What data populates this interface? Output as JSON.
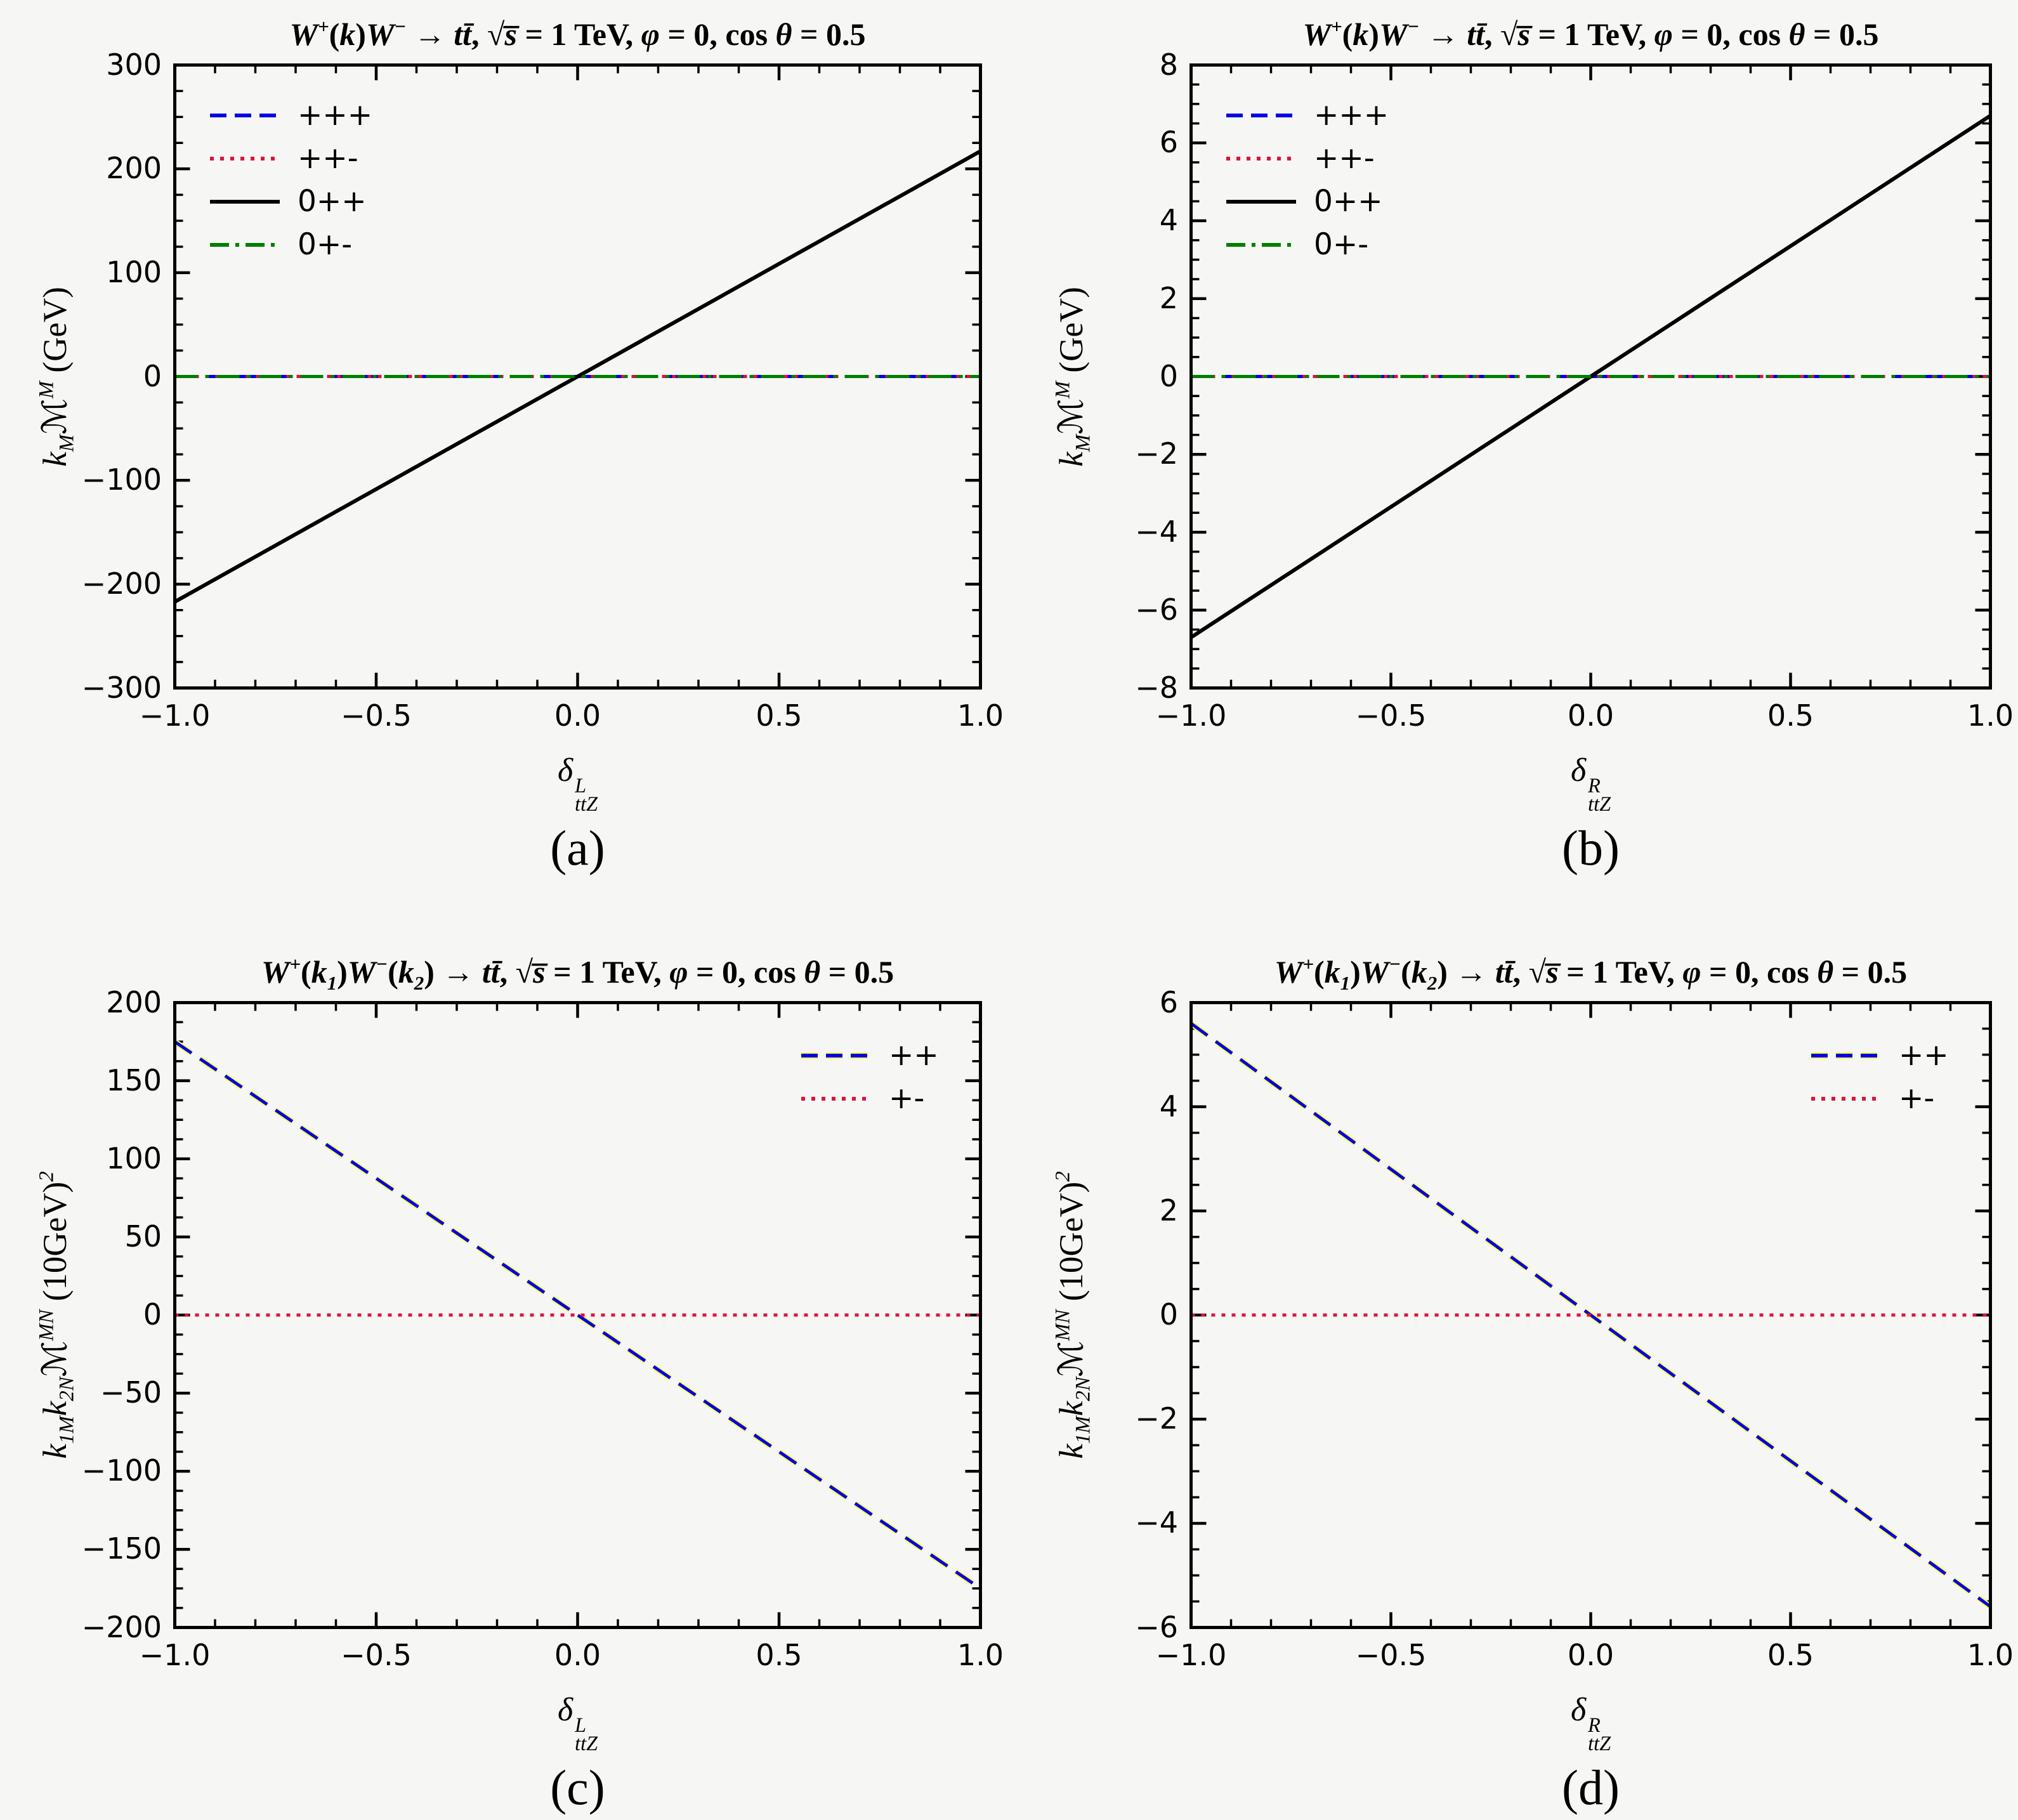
{
  "page": {
    "background": "#f6f6f4",
    "frame_color": "#000000"
  },
  "colors": {
    "blue": "#0000E6",
    "crimson": "#DC143C",
    "black": "#000000",
    "green": "#007F00",
    "yellow_underlay": "#FFFF4D"
  },
  "chart_data": [
    {
      "id": "a",
      "type": "line",
      "title": "$W$^{+}($k$)$W$^{−} → $tt̄$,  √$s̅$ = 1 TeV,  $φ$ = 0, cos $θ$ = 0.5",
      "ylabel": "$k$_{M}ℳ^{M} (GeV)",
      "xlabel": {
        "base": "$δ$",
        "sup": "L",
        "sub": "ttZ"
      },
      "caption": "(a)",
      "xlim": [
        -1,
        1
      ],
      "ylim": [
        -300,
        300
      ],
      "xticks": [
        {
          "v": -1,
          "t": "−1.0"
        },
        {
          "v": -0.5,
          "t": "−0.5"
        },
        {
          "v": 0,
          "t": "0.0"
        },
        {
          "v": 0.5,
          "t": "0.5"
        },
        {
          "v": 1,
          "t": "1.0"
        }
      ],
      "yticks": [
        {
          "v": 300,
          "t": "300"
        },
        {
          "v": 200,
          "t": "200"
        },
        {
          "v": 100,
          "t": "100"
        },
        {
          "v": 0,
          "t": "0"
        },
        {
          "v": -100,
          "t": "−100"
        },
        {
          "v": -200,
          "t": "−200"
        },
        {
          "v": -300,
          "t": "−300"
        }
      ],
      "xminor": 0.1,
      "yminor": 25,
      "grid": false,
      "legend": {
        "pos": "left",
        "items": [
          {
            "label": "+++",
            "color": "#0000E6",
            "style": "dashed"
          },
          {
            "label": "++-",
            "color": "#DC143C",
            "style": "dotted"
          },
          {
            "label": "0++",
            "color": "#000000",
            "style": "solid"
          },
          {
            "label": "0+-",
            "color": "#007F00",
            "style": "dashdot"
          }
        ]
      },
      "series": [
        {
          "name": "+++",
          "color": "#0000E6",
          "style": "dashed",
          "width": 5,
          "points": [
            [
              -1,
              0
            ],
            [
              1,
              0
            ]
          ]
        },
        {
          "name": "++-",
          "color": "#DC143C",
          "style": "dotted",
          "width": 5,
          "points": [
            [
              -1,
              0
            ],
            [
              1,
              0
            ]
          ]
        },
        {
          "name": "0++",
          "color": "#000000",
          "style": "solid",
          "width": 6,
          "points": [
            [
              -1,
              -217
            ],
            [
              1,
              217
            ]
          ]
        },
        {
          "name": "0+-",
          "color": "#007F00",
          "style": "dashdot",
          "width": 5,
          "points": [
            [
              -1,
              0
            ],
            [
              1,
              0
            ]
          ]
        }
      ]
    },
    {
      "id": "b",
      "type": "line",
      "title": "$W$^{+}($k$)$W$^{−} → $tt̄$,  √$s̅$ = 1 TeV,  $φ$ = 0, cos $θ$ = 0.5",
      "ylabel": "$k$_{M}ℳ^{M} (GeV)",
      "xlabel": {
        "base": "$δ$",
        "sup": "R",
        "sub": "ttZ"
      },
      "caption": "(b)",
      "xlim": [
        -1,
        1
      ],
      "ylim": [
        -8,
        8
      ],
      "xticks": [
        {
          "v": -1,
          "t": "−1.0"
        },
        {
          "v": -0.5,
          "t": "−0.5"
        },
        {
          "v": 0,
          "t": "0.0"
        },
        {
          "v": 0.5,
          "t": "0.5"
        },
        {
          "v": 1,
          "t": "1.0"
        }
      ],
      "yticks": [
        {
          "v": 8,
          "t": "8"
        },
        {
          "v": 6,
          "t": "6"
        },
        {
          "v": 4,
          "t": "4"
        },
        {
          "v": 2,
          "t": "2"
        },
        {
          "v": 0,
          "t": "0"
        },
        {
          "v": -2,
          "t": "−2"
        },
        {
          "v": -4,
          "t": "−4"
        },
        {
          "v": -6,
          "t": "−6"
        },
        {
          "v": -8,
          "t": "−8"
        }
      ],
      "xminor": 0.1,
      "yminor": 0.5,
      "grid": false,
      "legend": {
        "pos": "left",
        "items": [
          {
            "label": "+++",
            "color": "#0000E6",
            "style": "dashed"
          },
          {
            "label": "++-",
            "color": "#DC143C",
            "style": "dotted"
          },
          {
            "label": "0++",
            "color": "#000000",
            "style": "solid"
          },
          {
            "label": "0+-",
            "color": "#007F00",
            "style": "dashdot"
          }
        ]
      },
      "series": [
        {
          "name": "+++",
          "color": "#0000E6",
          "style": "dashed",
          "width": 5,
          "points": [
            [
              -1,
              0
            ],
            [
              1,
              0
            ]
          ]
        },
        {
          "name": "++-",
          "color": "#DC143C",
          "style": "dotted",
          "width": 5,
          "points": [
            [
              -1,
              0
            ],
            [
              1,
              0
            ]
          ]
        },
        {
          "name": "0++",
          "color": "#000000",
          "style": "solid",
          "width": 6,
          "points": [
            [
              -1,
              -6.7
            ],
            [
              1,
              6.7
            ]
          ]
        },
        {
          "name": "0+-",
          "color": "#007F00",
          "style": "dashdot",
          "width": 5,
          "points": [
            [
              -1,
              0
            ],
            [
              1,
              0
            ]
          ]
        }
      ]
    },
    {
      "id": "c",
      "type": "line",
      "title": "$W$^{+}($k$_{1})$W$^{−}($k$_{2}) → $tt̄$,  √$s̅$ = 1 TeV,  $φ$ = 0, cos $θ$ = 0.5",
      "ylabel": "$k$_{1M}$k$_{2N}ℳ^{MN} (10GeV)^{2}",
      "xlabel": {
        "base": "$δ$",
        "sup": "L",
        "sub": "ttZ"
      },
      "caption": "(c)",
      "xlim": [
        -1,
        1
      ],
      "ylim": [
        -200,
        200
      ],
      "xticks": [
        {
          "v": -1,
          "t": "−1.0"
        },
        {
          "v": -0.5,
          "t": "−0.5"
        },
        {
          "v": 0,
          "t": "0.0"
        },
        {
          "v": 0.5,
          "t": "0.5"
        },
        {
          "v": 1,
          "t": "1.0"
        }
      ],
      "yticks": [
        {
          "v": 200,
          "t": "200"
        },
        {
          "v": 150,
          "t": "150"
        },
        {
          "v": 100,
          "t": "100"
        },
        {
          "v": 50,
          "t": "50"
        },
        {
          "v": 0,
          "t": "0"
        },
        {
          "v": -50,
          "t": "−50"
        },
        {
          "v": -100,
          "t": "−100"
        },
        {
          "v": -150,
          "t": "−150"
        },
        {
          "v": -200,
          "t": "−200"
        }
      ],
      "xminor": 0.1,
      "yminor": 12.5,
      "grid": false,
      "legend": {
        "pos": "right",
        "items": [
          {
            "label": "++",
            "color": "#0000E6",
            "style": "dashed",
            "under": "#FFFF4D"
          },
          {
            "label": "+-",
            "color": "#DC143C",
            "style": "dotted"
          }
        ]
      },
      "series": [
        {
          "name": "yellow-underlay",
          "color": "#FFFF4D",
          "style": "dashed",
          "width": 9,
          "points": [
            [
              -1,
              175
            ],
            [
              1,
              -175
            ]
          ]
        },
        {
          "name": "++",
          "color": "#0000E6",
          "style": "dashed",
          "width": 5,
          "points": [
            [
              -1,
              175
            ],
            [
              1,
              -175
            ]
          ]
        },
        {
          "name": "+-",
          "color": "#DC143C",
          "style": "dotted",
          "width": 5,
          "points": [
            [
              -1,
              0
            ],
            [
              1,
              0
            ]
          ]
        }
      ]
    },
    {
      "id": "d",
      "type": "line",
      "title": "$W$^{+}($k$_{1})$W$^{−}($k$_{2}) → $tt̄$,  √$s̅$ = 1 TeV,  $φ$ = 0, cos $θ$ = 0.5",
      "ylabel": "$k$_{1M}$k$_{2N}ℳ^{MN} (10GeV)^{2}",
      "xlabel": {
        "base": "$δ$",
        "sup": "R",
        "sub": "ttZ"
      },
      "caption": "(d)",
      "xlim": [
        -1,
        1
      ],
      "ylim": [
        -6,
        6
      ],
      "xticks": [
        {
          "v": -1,
          "t": "−1.0"
        },
        {
          "v": -0.5,
          "t": "−0.5"
        },
        {
          "v": 0,
          "t": "0.0"
        },
        {
          "v": 0.5,
          "t": "0.5"
        },
        {
          "v": 1,
          "t": "1.0"
        }
      ],
      "yticks": [
        {
          "v": 6,
          "t": "6"
        },
        {
          "v": 4,
          "t": "4"
        },
        {
          "v": 2,
          "t": "2"
        },
        {
          "v": 0,
          "t": "0"
        },
        {
          "v": -2,
          "t": "−2"
        },
        {
          "v": -4,
          "t": "−4"
        },
        {
          "v": -6,
          "t": "−6"
        }
      ],
      "xminor": 0.1,
      "yminor": 0.5,
      "grid": false,
      "legend": {
        "pos": "right",
        "items": [
          {
            "label": "++",
            "color": "#0000E6",
            "style": "dashed",
            "under": "#FFFF4D"
          },
          {
            "label": "+-",
            "color": "#DC143C",
            "style": "dotted"
          }
        ]
      },
      "series": [
        {
          "name": "yellow-underlay",
          "color": "#FFFF4D",
          "style": "dashed",
          "width": 9,
          "points": [
            [
              -1,
              5.6
            ],
            [
              1,
              -5.6
            ]
          ]
        },
        {
          "name": "++",
          "color": "#0000E6",
          "style": "dashed",
          "width": 5,
          "points": [
            [
              -1,
              5.6
            ],
            [
              1,
              -5.6
            ]
          ]
        },
        {
          "name": "+-",
          "color": "#DC143C",
          "style": "dotted",
          "width": 5,
          "points": [
            [
              -1,
              0
            ],
            [
              1,
              0
            ]
          ]
        }
      ]
    }
  ]
}
